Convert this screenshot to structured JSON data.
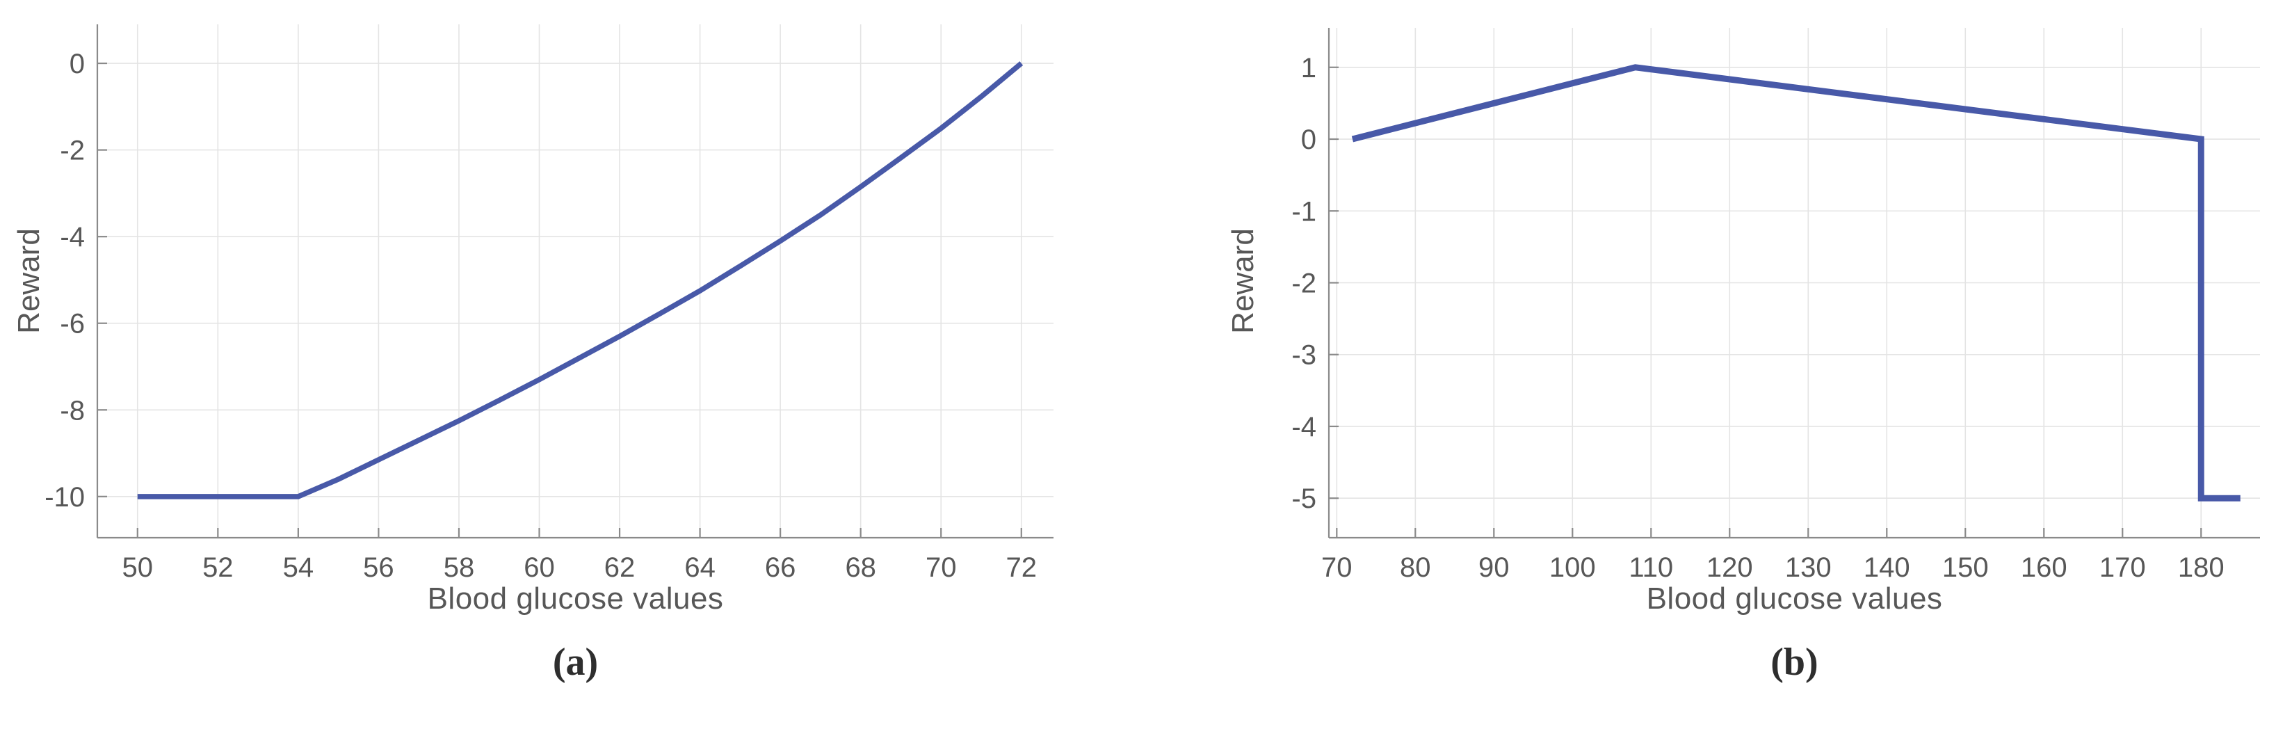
{
  "figure": {
    "background": "#ffffff",
    "grid_color": "#e4e4e4",
    "axis_color": "#8a8a8a",
    "tick_label_color": "#575757"
  },
  "chart_data": [
    {
      "type": "line",
      "caption": "(a)",
      "xlabel": "Blood glucose values",
      "ylabel": "Reward",
      "xlim": [
        49,
        72.8
      ],
      "ylim": [
        -10.95,
        0.9
      ],
      "xticks": [
        50,
        52,
        54,
        56,
        58,
        60,
        62,
        64,
        66,
        68,
        70,
        72
      ],
      "yticks": [
        -10,
        -8,
        -6,
        -4,
        -2,
        0
      ],
      "grid": true,
      "legend": "none",
      "line_color": "#4859a8",
      "line_width": 7.5,
      "series": [
        {
          "name": "reward",
          "x": [
            50,
            54,
            55,
            56,
            57,
            58,
            59,
            60,
            61,
            62,
            63,
            64,
            65,
            66,
            67,
            68,
            69,
            70,
            71,
            72
          ],
          "y": [
            -10,
            -10,
            -9.6,
            -9.15,
            -8.7,
            -8.25,
            -7.78,
            -7.3,
            -6.8,
            -6.3,
            -5.78,
            -5.25,
            -4.68,
            -4.1,
            -3.5,
            -2.85,
            -2.18,
            -1.5,
            -0.77,
            0
          ]
        }
      ]
    },
    {
      "type": "line",
      "caption": "(b)",
      "xlabel": "Blood glucose values",
      "ylabel": "Reward",
      "xlim": [
        69,
        187.5
      ],
      "ylim": [
        -5.55,
        1.55
      ],
      "xticks": [
        70,
        80,
        90,
        100,
        110,
        120,
        130,
        140,
        150,
        160,
        170,
        180
      ],
      "yticks": [
        -5,
        -4,
        -3,
        -2,
        -1,
        0,
        1
      ],
      "grid": true,
      "legend": "none",
      "line_color": "#4859a8",
      "line_width": 9,
      "series": [
        {
          "name": "reward",
          "x": [
            72,
            108,
            180,
            180,
            185
          ],
          "y": [
            0,
            1,
            0,
            -5,
            -5
          ]
        }
      ]
    }
  ]
}
